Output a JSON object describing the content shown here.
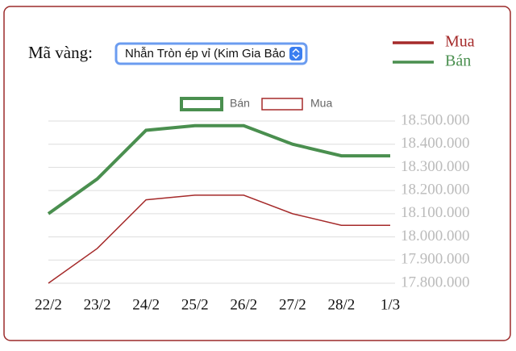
{
  "form": {
    "label": "Mã vàng:",
    "selected": "Nhẫn Tròn ép vỉ (Kim Gia Bảo"
  },
  "chart_data": {
    "type": "line",
    "categories": [
      "22/2",
      "23/2",
      "24/2",
      "25/2",
      "26/2",
      "27/2",
      "28/2",
      "1/3"
    ],
    "series": [
      {
        "name": "Bán",
        "color": "#4a8f4f",
        "values": [
          18100000,
          18250000,
          18460000,
          18480000,
          18480000,
          18400000,
          18350000,
          18350000
        ]
      },
      {
        "name": "Mua",
        "color": "#a52a2a",
        "values": [
          17800000,
          17950000,
          18160000,
          18180000,
          18180000,
          18100000,
          18050000,
          18050000
        ]
      }
    ],
    "ylim": [
      17800000,
      18500000
    ],
    "yticks": [
      {
        "value": 17800000,
        "label": "17.800.000"
      },
      {
        "value": 17900000,
        "label": "17.900.000"
      },
      {
        "value": 18000000,
        "label": "18.000.000"
      },
      {
        "value": 18100000,
        "label": "18.100.000"
      },
      {
        "value": 18200000,
        "label": "18.200.000"
      },
      {
        "value": 18300000,
        "label": "18.300.000"
      },
      {
        "value": 18400000,
        "label": "18.400.000"
      },
      {
        "value": 18500000,
        "label": "18.500.000"
      }
    ],
    "grid": true
  }
}
